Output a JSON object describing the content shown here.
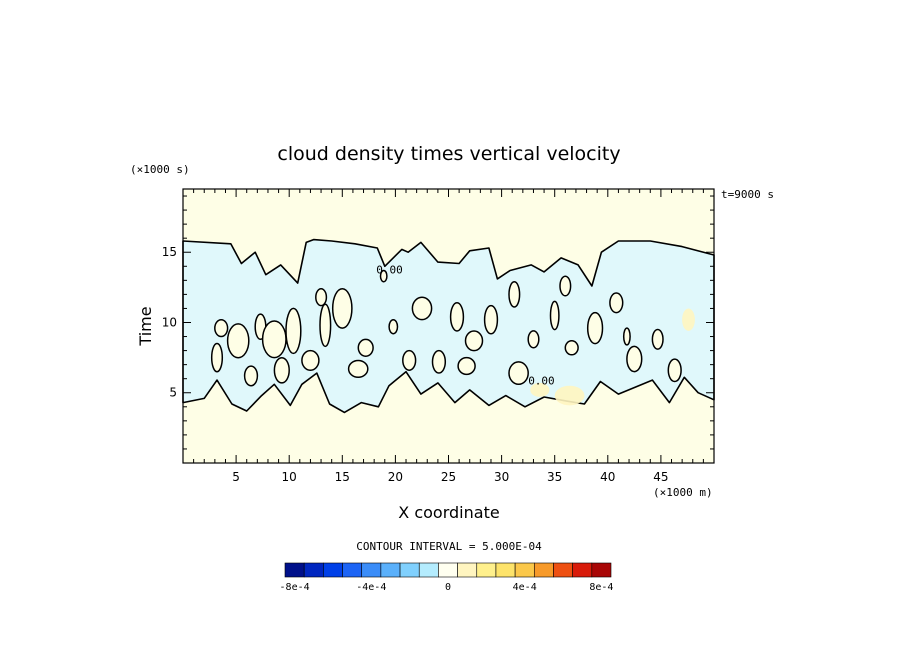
{
  "chart_data": {
    "type": "heatmap",
    "title": "cloud density times vertical velocity",
    "xlabel": "X coordinate",
    "ylabel": "Time",
    "x_unit": "(×1000 m)",
    "y_unit": "(×1000 s)",
    "time_note": "t=9000 s",
    "xlim": [
      0,
      50
    ],
    "ylim": [
      0,
      19.5
    ],
    "x_ticks": [
      5,
      10,
      15,
      20,
      25,
      30,
      35,
      40,
      45
    ],
    "y_ticks": [
      5,
      10,
      15
    ],
    "contour_interval_text": "CONTOUR INTERVAL = 5.000E-04",
    "contour_labels": [
      {
        "text": "0.00",
        "x": 18.2,
        "y": 13.5
      },
      {
        "text": "0.00",
        "x": 32.5,
        "y": 5.6
      }
    ],
    "colorbar": {
      "colors": [
        "#00108a",
        "#0026c0",
        "#0040e8",
        "#1c64f5",
        "#3a8cf8",
        "#5ab0fb",
        "#80d0fd",
        "#b4ecfe",
        "#fffff0",
        "#fff5c0",
        "#fff08c",
        "#fde36a",
        "#fbc84a",
        "#f79a2a",
        "#ee5012",
        "#d81b0a",
        "#a80606"
      ],
      "tick_labels": [
        "-8e-4",
        "-4e-4",
        "0",
        "4e-4",
        "8e-4"
      ],
      "tick_values": [
        -0.0008,
        -0.0004,
        0,
        0.0004,
        0.0008
      ]
    },
    "regions": [
      {
        "sign": "negative",
        "description": "cloudy updraft/downdraft band",
        "t_range": [
          3.5,
          15.8
        ]
      }
    ],
    "colors": {
      "background_field": "#fefee6",
      "negative_field": "#e0f8fb",
      "contour": "#000000"
    }
  }
}
